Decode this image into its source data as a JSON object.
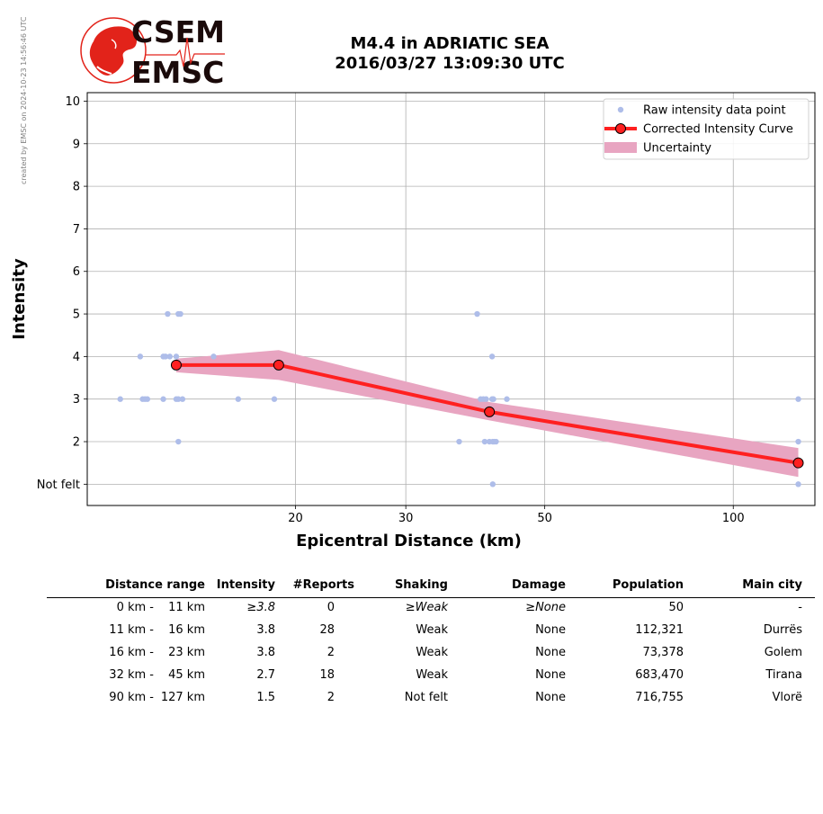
{
  "stamp": "created by EMSC on 2024-10-23 14:56:46 UTC",
  "logo": {
    "line1": "CSEM",
    "line2": "EMSC",
    "accent": "#e2231a"
  },
  "title": {
    "line1": "M4.4 in ADRIATIC SEA",
    "line2": "2016/03/27 13:09:30 UTC"
  },
  "chart_data": {
    "type": "scatter",
    "xlabel": "Epicentral Distance (km)",
    "ylabel": "Intensity",
    "xscale": "log",
    "xlim": [
      9.3,
      135
    ],
    "ylim": [
      0.5,
      10.2
    ],
    "xticks": [
      {
        "v": 20,
        "label": "20"
      },
      {
        "v": 30,
        "label": "30"
      },
      {
        "v": 50,
        "label": "50"
      },
      {
        "v": 100,
        "label": "100"
      }
    ],
    "yticks": [
      {
        "v": 1,
        "label": "Not felt"
      },
      {
        "v": 2,
        "label": "2"
      },
      {
        "v": 3,
        "label": "3"
      },
      {
        "v": 4,
        "label": "4"
      },
      {
        "v": 5,
        "label": "5"
      },
      {
        "v": 6,
        "label": "6"
      },
      {
        "v": 7,
        "label": "7"
      },
      {
        "v": 8,
        "label": "8"
      },
      {
        "v": 9,
        "label": "9"
      },
      {
        "v": 10,
        "label": "10"
      }
    ],
    "grid": true,
    "legend_position": "top-right",
    "legend": [
      "Raw intensity data point",
      "Corrected Intensity Curve",
      "Uncertainty"
    ],
    "colors": {
      "raw": "#aebde9",
      "curve": "#ff2020",
      "marker": "#ff2020",
      "uncertainty": "#e8a5c1"
    },
    "raw_points": [
      [
        10.5,
        3
      ],
      [
        11.3,
        4
      ],
      [
        11.4,
        3
      ],
      [
        11.5,
        3
      ],
      [
        11.6,
        3
      ],
      [
        12.3,
        4
      ],
      [
        12.4,
        4
      ],
      [
        12.3,
        3
      ],
      [
        12.5,
        5
      ],
      [
        12.6,
        4
      ],
      [
        12.9,
        4
      ],
      [
        12.9,
        3
      ],
      [
        13.0,
        3
      ],
      [
        13.0,
        5
      ],
      [
        13.1,
        5
      ],
      [
        13.2,
        3
      ],
      [
        13.0,
        2
      ],
      [
        14.8,
        4
      ],
      [
        16.2,
        3
      ],
      [
        18.5,
        3
      ],
      [
        36.5,
        2
      ],
      [
        39.0,
        5
      ],
      [
        39.5,
        3
      ],
      [
        39.9,
        3
      ],
      [
        40.1,
        2
      ],
      [
        40.3,
        3
      ],
      [
        40.8,
        2
      ],
      [
        41.2,
        4
      ],
      [
        41.2,
        3
      ],
      [
        41.3,
        2
      ],
      [
        41.4,
        3
      ],
      [
        41.5,
        2
      ],
      [
        41.8,
        2
      ],
      [
        41.3,
        1
      ],
      [
        43.5,
        3
      ],
      [
        127,
        3
      ],
      [
        127,
        2
      ],
      [
        127,
        1
      ]
    ],
    "curve": [
      {
        "x": 12.9,
        "y": 3.8,
        "lo": 3.63,
        "hi": 3.95
      },
      {
        "x": 18.8,
        "y": 3.8,
        "lo": 3.45,
        "hi": 4.15
      },
      {
        "x": 40.8,
        "y": 2.7,
        "lo": 2.5,
        "hi": 2.93
      },
      {
        "x": 127,
        "y": 1.5,
        "lo": 1.17,
        "hi": 1.85
      }
    ]
  },
  "table": {
    "headers": [
      "Distance range",
      "Intensity",
      "#Reports",
      "Shaking",
      "Damage",
      "Population",
      "Main city"
    ],
    "rows": [
      {
        "d1": "0 km -",
        "d2": "11 km",
        "intensity": "≥3.8",
        "reports": "0",
        "shaking": "≥Weak",
        "damage": "≥None",
        "population": "50",
        "city": "-"
      },
      {
        "d1": "11 km -",
        "d2": "16 km",
        "intensity": "3.8",
        "reports": "28",
        "shaking": "Weak",
        "damage": "None",
        "population": "112,321",
        "city": "Durrës"
      },
      {
        "d1": "16 km -",
        "d2": "23 km",
        "intensity": "3.8",
        "reports": "2",
        "shaking": "Weak",
        "damage": "None",
        "population": "73,378",
        "city": "Golem"
      },
      {
        "d1": "32 km -",
        "d2": "45 km",
        "intensity": "2.7",
        "reports": "18",
        "shaking": "Weak",
        "damage": "None",
        "population": "683,470",
        "city": "Tirana"
      },
      {
        "d1": "90 km -",
        "d2": "127 km",
        "intensity": "1.5",
        "reports": "2",
        "shaking": "Not felt",
        "damage": "None",
        "population": "716,755",
        "city": "Vlorë"
      }
    ]
  }
}
